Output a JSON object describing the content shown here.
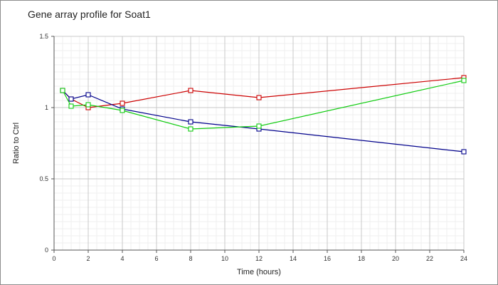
{
  "chart_data": {
    "type": "line",
    "title": "Gene array profile for Soat1",
    "xlabel": "Time (hours)",
    "ylabel": "Ratio to Ctrl",
    "xlim": [
      0,
      24
    ],
    "ylim": [
      0,
      1.5
    ],
    "xticks": [
      0,
      2,
      4,
      6,
      8,
      10,
      12,
      14,
      16,
      18,
      20,
      22,
      24
    ],
    "yticks": [
      0,
      0.5,
      1,
      1.5
    ],
    "ytick_labels": [
      "0",
      "0.5",
      "1",
      "1.5"
    ],
    "grid": true,
    "legend": false,
    "series": [
      {
        "color": "#cc0000",
        "x": [
          0.5,
          1,
          2,
          4,
          8,
          12,
          24
        ],
        "y": [
          1.12,
          1.06,
          1.0,
          1.03,
          1.12,
          1.07,
          1.21
        ]
      },
      {
        "color": "#00008b",
        "x": [
          0.5,
          1,
          2,
          4,
          8,
          12,
          24
        ],
        "y": [
          1.12,
          1.06,
          1.09,
          0.99,
          0.9,
          0.85,
          0.69
        ]
      },
      {
        "color": "#11cc11",
        "x": [
          0.5,
          1,
          2,
          4,
          8,
          12,
          24
        ],
        "y": [
          1.12,
          1.01,
          1.02,
          0.98,
          0.85,
          0.87,
          1.19
        ]
      }
    ]
  }
}
